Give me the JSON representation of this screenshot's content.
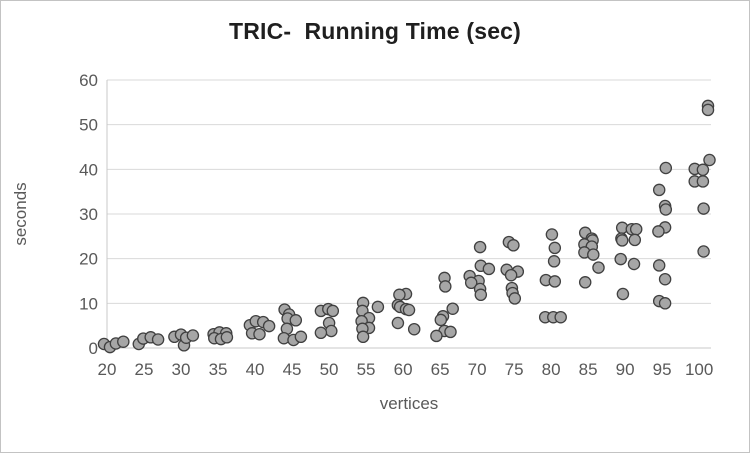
{
  "chart_data": {
    "type": "scatter",
    "title": "TRIC-  Running Time (sec)",
    "xlabel": "vertices",
    "ylabel": "seconds",
    "xlim": [
      20,
      101.6
    ],
    "ylim": [
      0,
      60
    ],
    "x_ticks": [
      20,
      25,
      30,
      35,
      40,
      45,
      50,
      55,
      60,
      65,
      70,
      75,
      80,
      85,
      90,
      95,
      100
    ],
    "y_ticks": [
      0,
      10,
      20,
      30,
      40,
      50,
      60
    ],
    "grid": "horizontal",
    "legend": "none",
    "marker": {
      "shape": "circle",
      "fill": "#a6a6a6",
      "stroke": "#404040",
      "radius_px": 5.6
    },
    "colors": {
      "title": "#1f1f1f",
      "axis_text": "#595959",
      "gridline": "#d9d9d9",
      "background": "#ffffff",
      "border": "#c3c3c3"
    },
    "points": [
      [
        19.6,
        0.9
      ],
      [
        20.4,
        0.2
      ],
      [
        21.2,
        1.0
      ],
      [
        22.2,
        1.4
      ],
      [
        24.3,
        0.9
      ],
      [
        24.9,
        2.1
      ],
      [
        25.9,
        2.4
      ],
      [
        26.9,
        1.9
      ],
      [
        29.1,
        2.5
      ],
      [
        30.0,
        3.0
      ],
      [
        30.4,
        0.6
      ],
      [
        30.7,
        2.3
      ],
      [
        31.6,
        2.8
      ],
      [
        34.4,
        3.1
      ],
      [
        35.2,
        3.5
      ],
      [
        36.1,
        3.3
      ],
      [
        34.5,
        2.2
      ],
      [
        35.4,
        2.0
      ],
      [
        36.2,
        2.4
      ],
      [
        39.3,
        5.1
      ],
      [
        40.1,
        6.0
      ],
      [
        41.1,
        5.8
      ],
      [
        41.9,
        4.9
      ],
      [
        39.6,
        3.3
      ],
      [
        40.6,
        3.1
      ],
      [
        44.0,
        8.6
      ],
      [
        44.6,
        7.5
      ],
      [
        44.4,
        6.6
      ],
      [
        45.5,
        6.2
      ],
      [
        44.3,
        4.3
      ],
      [
        43.9,
        2.2
      ],
      [
        45.2,
        1.8
      ],
      [
        46.2,
        2.5
      ],
      [
        48.9,
        8.3
      ],
      [
        49.9,
        8.7
      ],
      [
        50.5,
        8.3
      ],
      [
        50.0,
        5.6
      ],
      [
        50.3,
        3.8
      ],
      [
        48.9,
        3.4
      ],
      [
        54.6,
        10.1
      ],
      [
        56.6,
        9.2
      ],
      [
        54.5,
        8.3
      ],
      [
        55.4,
        6.7
      ],
      [
        54.4,
        6.0
      ],
      [
        55.4,
        4.5
      ],
      [
        54.5,
        4.3
      ],
      [
        54.6,
        2.5
      ],
      [
        60.4,
        12.1
      ],
      [
        59.5,
        11.9
      ],
      [
        59.3,
        9.6
      ],
      [
        59.6,
        9.2
      ],
      [
        60.4,
        8.7
      ],
      [
        60.8,
        8.5
      ],
      [
        59.3,
        5.6
      ],
      [
        61.5,
        4.2
      ],
      [
        65.6,
        15.7
      ],
      [
        65.7,
        13.8
      ],
      [
        66.7,
        8.8
      ],
      [
        65.4,
        7.1
      ],
      [
        65.1,
        6.3
      ],
      [
        65.6,
        3.8
      ],
      [
        66.4,
        3.6
      ],
      [
        64.5,
        2.7
      ],
      [
        70.4,
        22.6
      ],
      [
        70.5,
        18.4
      ],
      [
        71.6,
        17.7
      ],
      [
        69.0,
        16.1
      ],
      [
        70.2,
        15.0
      ],
      [
        69.2,
        14.6
      ],
      [
        70.4,
        13.2
      ],
      [
        70.5,
        11.9
      ],
      [
        74.3,
        23.7
      ],
      [
        74.9,
        23.0
      ],
      [
        74.0,
        17.5
      ],
      [
        75.5,
        17.1
      ],
      [
        74.6,
        16.3
      ],
      [
        74.7,
        13.4
      ],
      [
        74.8,
        12.3
      ],
      [
        75.1,
        11.1
      ],
      [
        80.1,
        25.4
      ],
      [
        80.5,
        22.4
      ],
      [
        80.4,
        19.4
      ],
      [
        79.3,
        15.2
      ],
      [
        80.5,
        14.9
      ],
      [
        79.2,
        6.9
      ],
      [
        80.3,
        6.9
      ],
      [
        81.3,
        6.9
      ],
      [
        84.6,
        25.8
      ],
      [
        85.5,
        24.5
      ],
      [
        85.6,
        24.1
      ],
      [
        84.5,
        23.2
      ],
      [
        85.5,
        22.7
      ],
      [
        84.5,
        21.4
      ],
      [
        85.7,
        20.9
      ],
      [
        86.4,
        18.0
      ],
      [
        84.6,
        14.7
      ],
      [
        89.6,
        26.9
      ],
      [
        90.9,
        26.6
      ],
      [
        91.5,
        26.6
      ],
      [
        89.5,
        24.5
      ],
      [
        89.6,
        24.1
      ],
      [
        91.3,
        24.2
      ],
      [
        89.4,
        19.9
      ],
      [
        91.2,
        18.8
      ],
      [
        89.7,
        12.1
      ],
      [
        95.5,
        40.3
      ],
      [
        94.6,
        35.4
      ],
      [
        95.4,
        31.8
      ],
      [
        95.5,
        31.0
      ],
      [
        95.4,
        27.0
      ],
      [
        94.5,
        26.1
      ],
      [
        94.6,
        18.5
      ],
      [
        95.4,
        15.4
      ],
      [
        94.6,
        10.5
      ],
      [
        95.4,
        10.0
      ],
      [
        101.2,
        54.2
      ],
      [
        101.2,
        53.3
      ],
      [
        101.4,
        42.1
      ],
      [
        99.4,
        40.1
      ],
      [
        100.5,
        39.9
      ],
      [
        99.4,
        37.3
      ],
      [
        100.5,
        37.3
      ],
      [
        100.6,
        31.2
      ],
      [
        100.6,
        21.6
      ]
    ]
  }
}
